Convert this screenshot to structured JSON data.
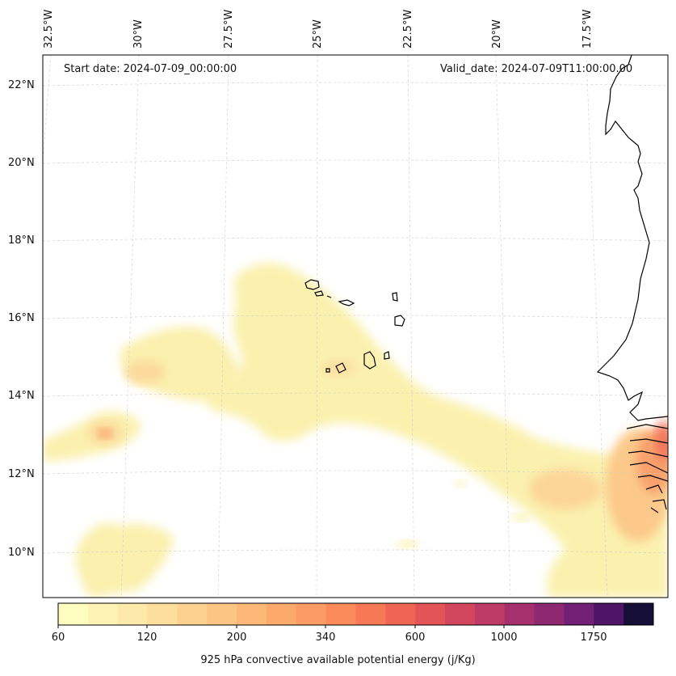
{
  "annotations": {
    "start_date": "Start date: 2024-07-09_00:00:00",
    "valid_date": "Valid_date: 2024-07-09T11:00:00.00"
  },
  "longitude_labels": [
    "32.5°W",
    "30°W",
    "27.5°W",
    "25°W",
    "22.5°W",
    "20°W",
    "17.5°W"
  ],
  "latitude_labels": [
    "22°N",
    "20°N",
    "18°N",
    "16°N",
    "14°N",
    "12°N",
    "10°N"
  ],
  "colorbar": {
    "label": "925 hPa convective available potential energy (j/Kg)",
    "tick_labels": [
      "60",
      "120",
      "200",
      "340",
      "600",
      "1000",
      "1750"
    ],
    "colors": [
      "#fcfdbf",
      "#fdf3b5",
      "#fde9a9",
      "#fdde9c",
      "#fdd290",
      "#fdc583",
      "#fdb777",
      "#fca96c",
      "#fc9b63",
      "#fb8b5b",
      "#f77855",
      "#ef6553",
      "#e35457",
      "#d2465d",
      "#bd3b66",
      "#a6306e",
      "#8e2971",
      "#721f76",
      "#4e1466",
      "#150e37"
    ]
  },
  "colors": {
    "cape_low": "#fbf2b0",
    "cape_mid": "#fcd79a",
    "cape_high": "#f9a06c",
    "cape_peak": "#f2735a",
    "coastline": "#000000",
    "gridline": "#cccccc"
  }
}
